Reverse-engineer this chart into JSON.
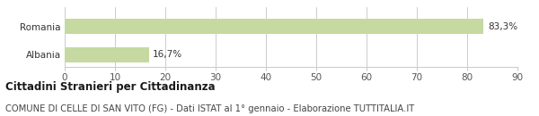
{
  "categories": [
    "Romania",
    "Albania"
  ],
  "values": [
    83.3,
    16.7
  ],
  "labels": [
    "83,3%",
    "16,7%"
  ],
  "bar_color": "#c5d9a0",
  "xlim": [
    0,
    90
  ],
  "xticks": [
    0,
    10,
    20,
    30,
    40,
    50,
    60,
    70,
    80,
    90
  ],
  "title": "Cittadini Stranieri per Cittadinanza",
  "subtitle": "COMUNE DI CELLE DI SAN VITO (FG) - Dati ISTAT al 1° gennaio - Elaborazione TUTTITALIA.IT",
  "title_fontsize": 8.5,
  "subtitle_fontsize": 7.2,
  "label_fontsize": 7.5,
  "tick_fontsize": 7.5,
  "ytick_fontsize": 7.5,
  "background_color": "#ffffff",
  "grid_color": "#cccccc"
}
